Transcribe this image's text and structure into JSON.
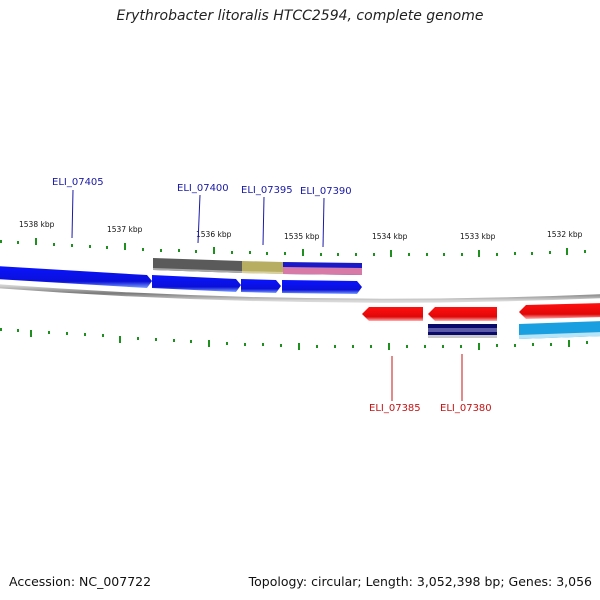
{
  "title": "Erythrobacter litoralis HTCC2594, complete genome",
  "footer": {
    "accession": "Accession: NC_007722",
    "stats": "Topology: circular; Length: 3,052,398 bp; Genes: 3,056"
  },
  "scale_labels": [
    "1538 kbp",
    "1537 kbp",
    "1536 kbp",
    "1535 kbp",
    "1534 kbp",
    "1533 kbp",
    "1532 kbp"
  ],
  "genes": {
    "forward": [
      "ELI_07405",
      "ELI_07400",
      "ELI_07395",
      "ELI_07390"
    ],
    "reverse": [
      "ELI_07385",
      "ELI_07380"
    ]
  },
  "colors": {
    "forward_gene": "#1018e8",
    "reverse_gene": "#ee0a0a",
    "backbone": "#8a8a8a",
    "tick": "#1f8f1f",
    "forward_label": "#1a1aa8",
    "reverse_label": "#c41414",
    "cyan_feature": "#1aa0e0"
  }
}
